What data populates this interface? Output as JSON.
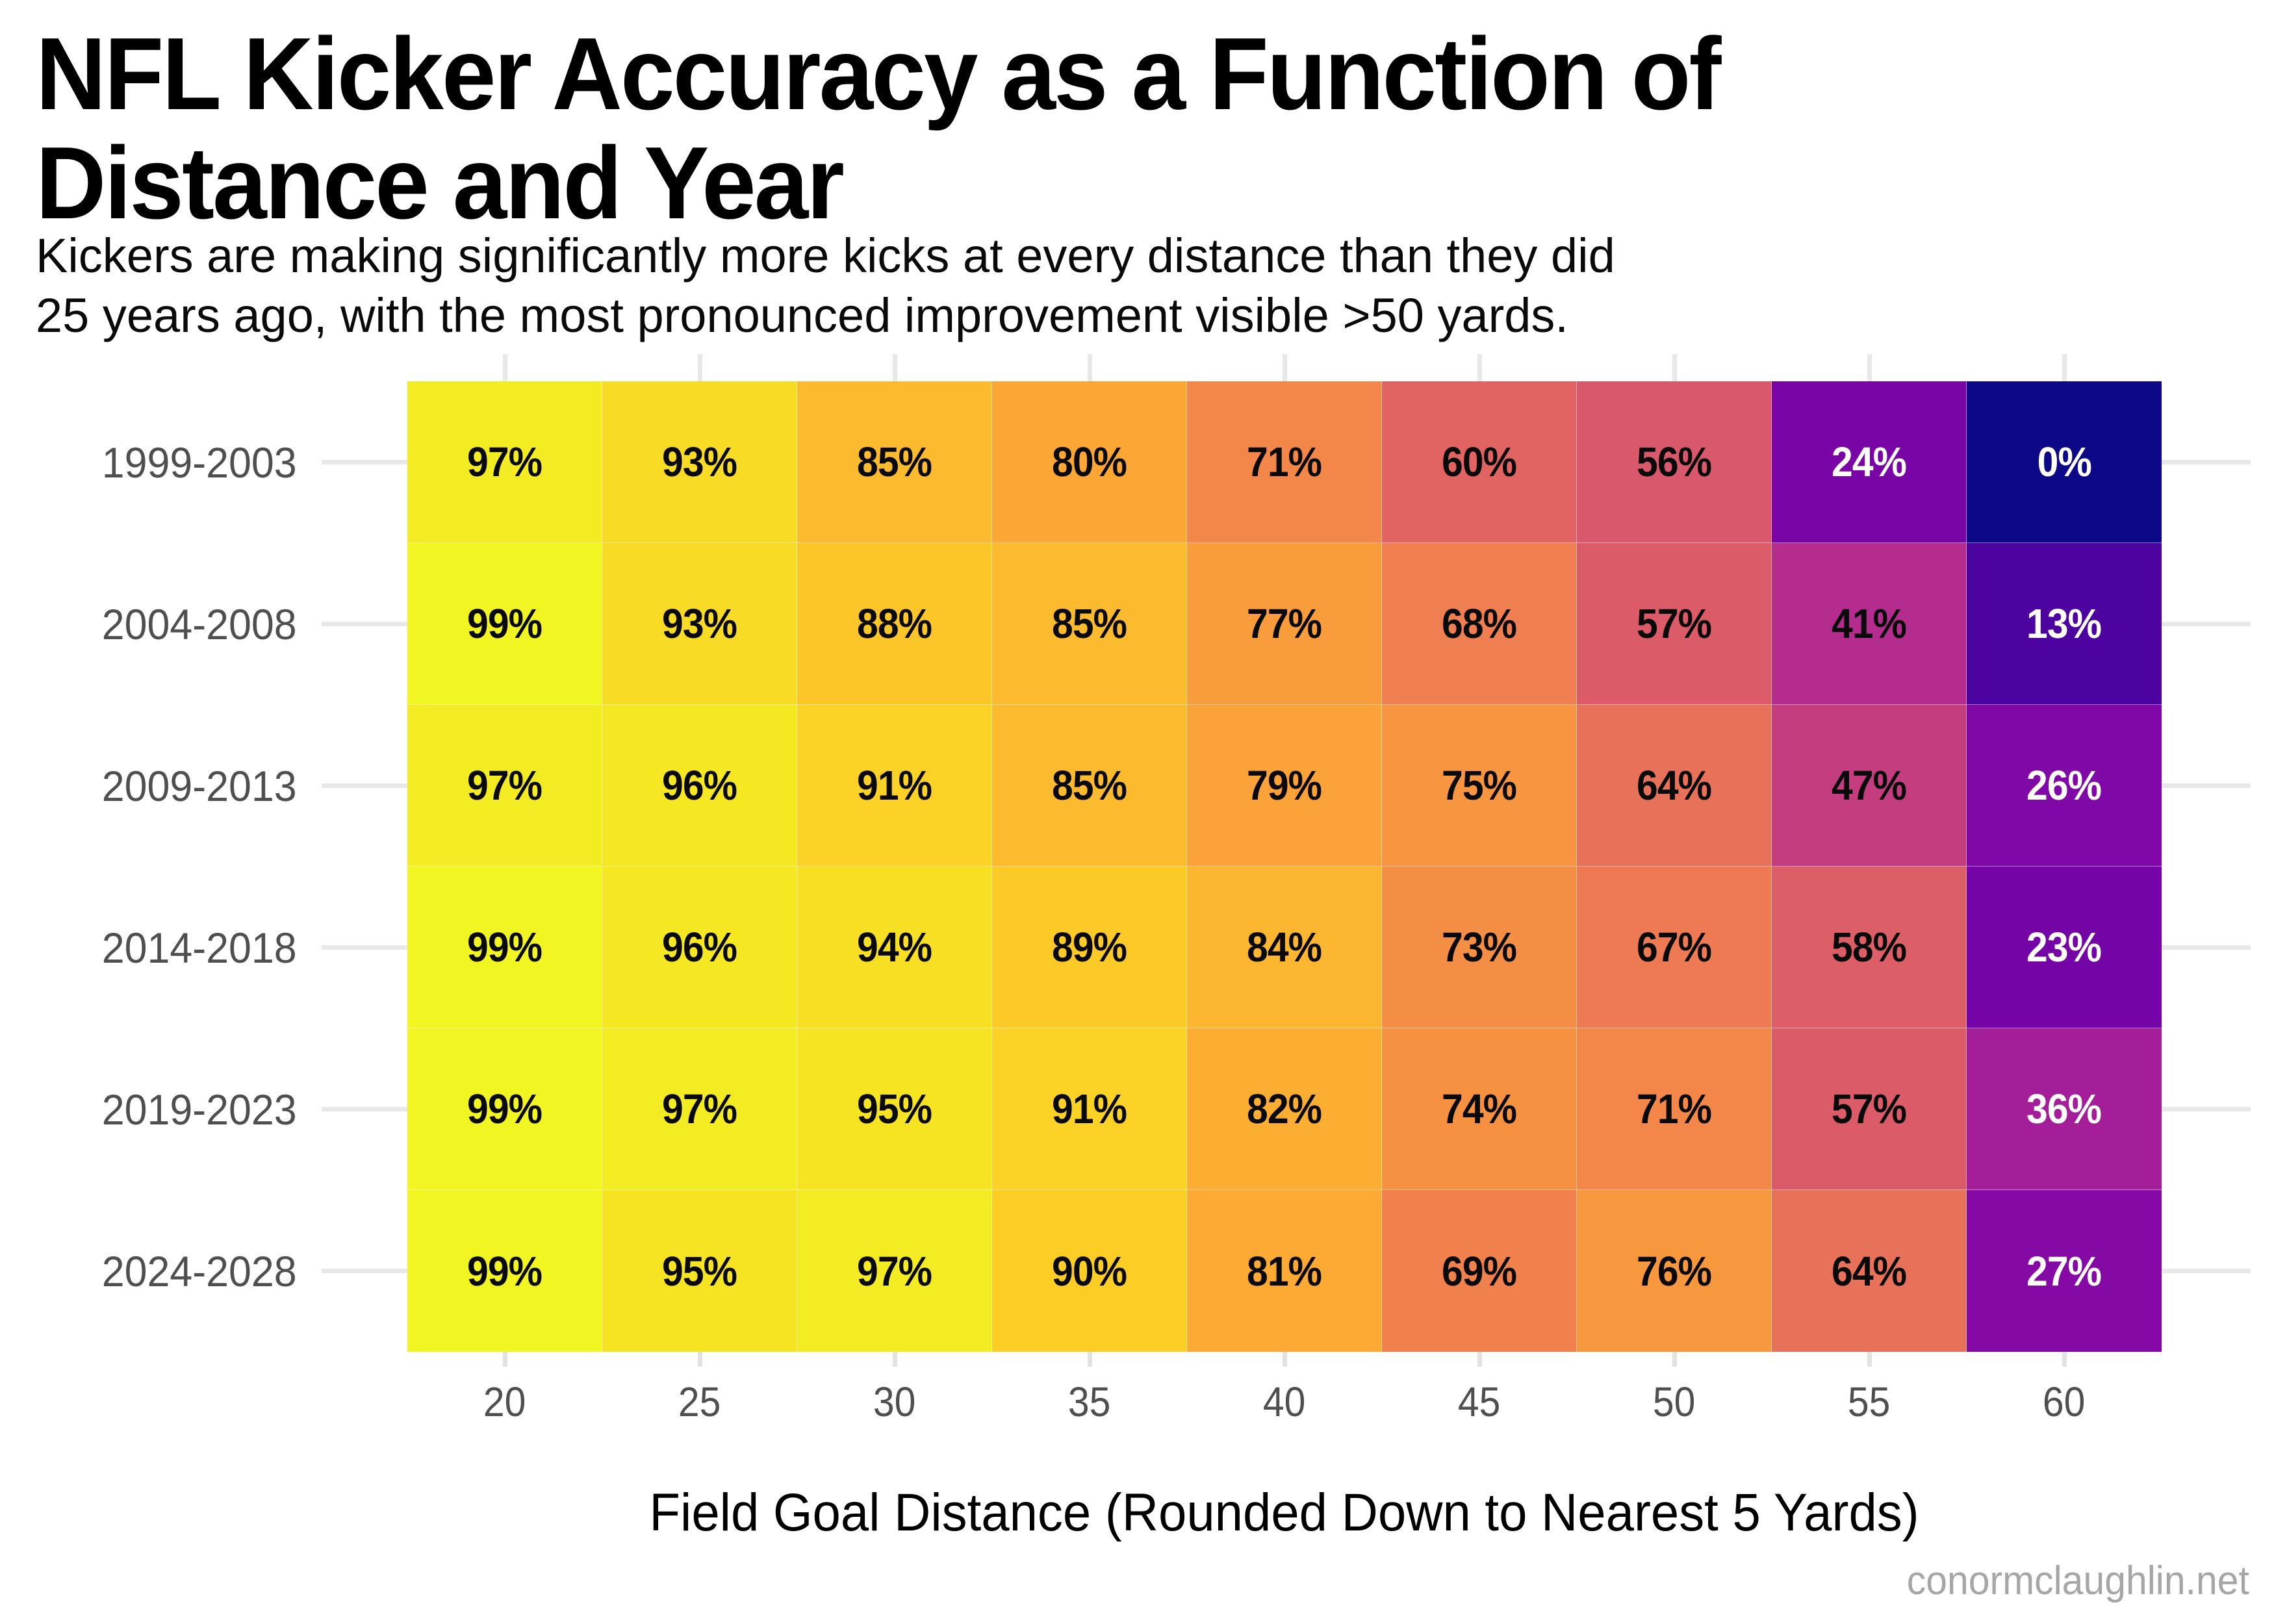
{
  "header": {
    "title_line1": "NFL Kicker Accuracy as a Function of",
    "title_line2": "Distance and Year",
    "subtitle_line1": "Kickers are making significantly more kicks at every distance than they did",
    "subtitle_line2": "25 years ago, with the most pronounced improvement visible >50 yards."
  },
  "footer": {
    "watermark": "conormclaughlin.net"
  },
  "chart_data": {
    "type": "heatmap",
    "title": "NFL Kicker Accuracy as a Function of Distance and Year",
    "subtitle": "Kickers are making significantly more kicks at every distance than they did 25 years ago, with the most pronounced improvement visible >50 yards.",
    "xlabel": "Field Goal Distance (Rounded Down to Nearest 5 Yards)",
    "ylabel": "",
    "x_categories": [
      "20",
      "25",
      "30",
      "35",
      "40",
      "45",
      "50",
      "55",
      "60"
    ],
    "y_categories": [
      "1999-2003",
      "2004-2008",
      "2009-2013",
      "2014-2018",
      "2019-2023",
      "2024-2028"
    ],
    "unit": "%",
    "values": [
      [
        97,
        93,
        85,
        80,
        71,
        60,
        56,
        24,
        0
      ],
      [
        99,
        93,
        88,
        85,
        77,
        68,
        57,
        41,
        13
      ],
      [
        97,
        96,
        91,
        85,
        79,
        75,
        64,
        47,
        26
      ],
      [
        99,
        96,
        94,
        89,
        84,
        73,
        67,
        58,
        23
      ],
      [
        99,
        97,
        95,
        91,
        82,
        74,
        71,
        57,
        36
      ],
      [
        99,
        95,
        97,
        90,
        81,
        69,
        76,
        64,
        27
      ]
    ],
    "cell_colors": [
      [
        "#F4EC22",
        "#F8DB24",
        "#FCBA2E",
        "#FCA636",
        "#F38749",
        "#E16462",
        "#D9586B",
        "#7905A6",
        "#0D0887"
      ],
      [
        "#F1F521",
        "#F8DB24",
        "#FCC628",
        "#FCBA2E",
        "#F99C3C",
        "#EF7E50",
        "#DB5B69",
        "#B42D8E",
        "#4D03A0"
      ],
      [
        "#F4EC22",
        "#F5E823",
        "#FBD225",
        "#FCBA2E",
        "#FBA338",
        "#F79540",
        "#E87159",
        "#C43E7F",
        "#8008A6"
      ],
      [
        "#F1F521",
        "#F5E823",
        "#F7DF23",
        "#FCCA27",
        "#FCB62F",
        "#F58E45",
        "#ED7A52",
        "#DC5E66",
        "#7504A7"
      ],
      [
        "#F1F521",
        "#F4EC22",
        "#F6E423",
        "#FBD225",
        "#FCAE32",
        "#F69142",
        "#F38749",
        "#DB5B69",
        "#A31E98"
      ],
      [
        "#F1F521",
        "#F6E423",
        "#F4EC22",
        "#FCCE25",
        "#FCAA34",
        "#F0814D",
        "#F8983E",
        "#E87159",
        "#8409A5"
      ]
    ],
    "colormap": "plasma",
    "value_domain": [
      0,
      100
    ],
    "grid": true,
    "legend": "none",
    "style": {
      "background": "#ffffff",
      "grid_color": "#e8e8e8",
      "tick_color": "#e2e2e2",
      "axis_text_color": "#4f4f4f",
      "title_color": "#000000",
      "watermark_color": "#a6a6a6",
      "cell_text_dark": "#0a0a0a",
      "cell_text_light": "#ffffff",
      "light_text_below": 40
    }
  }
}
